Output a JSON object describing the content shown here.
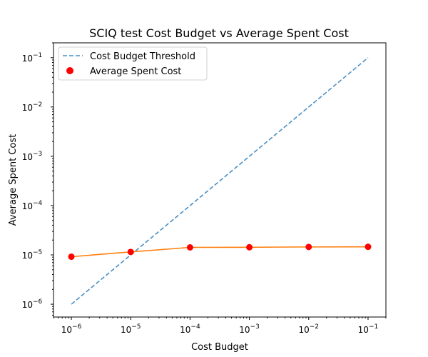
{
  "chart_data": {
    "type": "line",
    "title": "SCIQ test Cost Budget vs Average Spent Cost",
    "xlabel": "Cost Budget",
    "ylabel": "Average Spent Cost",
    "xscale": "log",
    "yscale": "log",
    "xlim": [
      5e-07,
      0.2
    ],
    "ylim": [
      5.5e-07,
      0.2
    ],
    "x_tick_values": [
      1e-06,
      1e-05,
      0.0001,
      0.001,
      0.01,
      0.1
    ],
    "y_tick_values": [
      1e-06,
      1e-05,
      0.0001,
      0.001,
      0.01,
      0.1
    ],
    "grid": false,
    "legend_position": "top-left",
    "series": [
      {
        "name": "Cost Budget Threshold",
        "style": "dashed",
        "color": "#4a90c4",
        "x": [
          1e-06,
          0.1
        ],
        "y": [
          1e-06,
          0.1
        ]
      },
      {
        "name": "Average Spent Cost",
        "style": "markers",
        "color": "#ff0000",
        "line_color": "#ff7f0e",
        "x": [
          1e-06,
          1e-05,
          0.0001,
          0.001,
          0.01,
          0.1
        ],
        "y": [
          9.2e-06,
          1.15e-05,
          1.42e-05,
          1.43e-05,
          1.45e-05,
          1.46e-05
        ]
      }
    ]
  }
}
